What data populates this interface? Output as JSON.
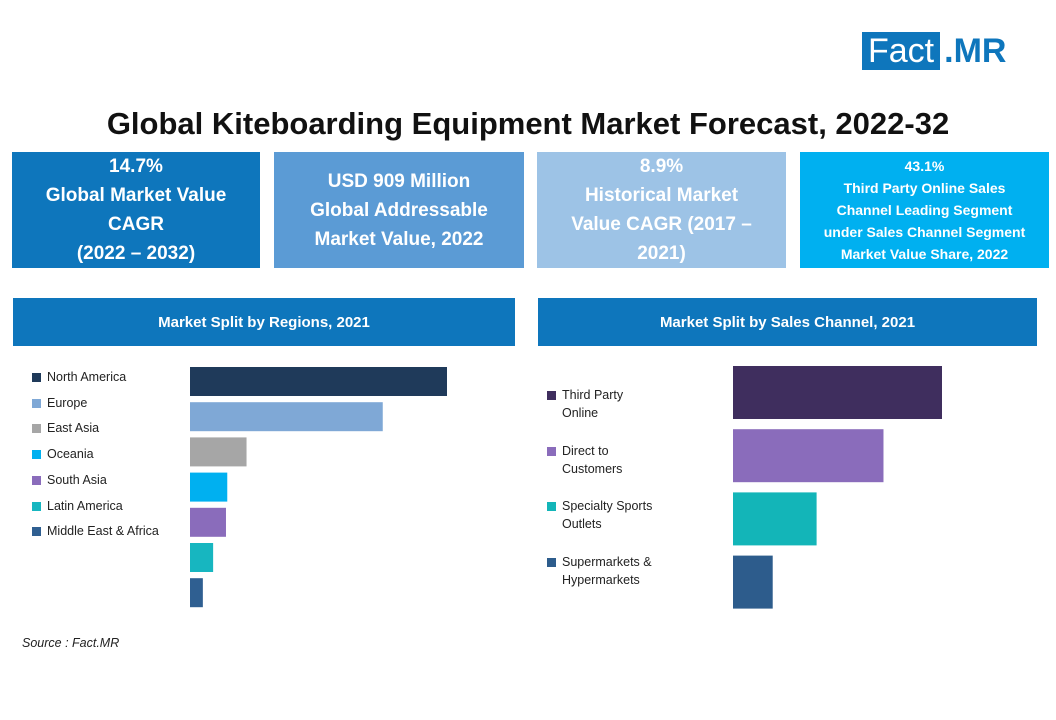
{
  "logo": {
    "part1": "Fact",
    "part2": ".MR"
  },
  "title": "Global Kiteboarding Equipment Market Forecast, 2022-32",
  "kpis": [
    {
      "text": "14.7%\nGlobal Market Value\nCAGR\n(2022 – 2032)",
      "bg": "#0e76bc"
    },
    {
      "text": "USD 909 Million\nGlobal Addressable\nMarket Value, 2022",
      "bg": "#5b9bd5"
    },
    {
      "text": "8.9%\nHistorical Market\nValue CAGR (2017 –\n2021)",
      "bg": "#9dc3e6"
    },
    {
      "text": "43.1%\nThird Party Online Sales\nChannel Leading Segment\nunder Sales Channel Segment\nMarket Value Share, 2022",
      "bg": "#00b0f0"
    }
  ],
  "chart_data": [
    {
      "type": "bar",
      "title": "Market Split by Regions, 2021",
      "orientation": "horizontal",
      "categories": [
        "North America",
        "Europe",
        "East Asia",
        "Oceania",
        "South Asia",
        "Latin America",
        "Middle East & Africa"
      ],
      "values": [
        100,
        75,
        22,
        14.5,
        14,
        9,
        5
      ],
      "colors": [
        "#1f3a5a",
        "#7fa8d6",
        "#a6a6a6",
        "#00b0f0",
        "#8a6cbb",
        "#17b6c0",
        "#2f5f91"
      ],
      "legend_position": "left",
      "axes_visible": false
    },
    {
      "type": "bar",
      "title": "Market Split by Sales Channel, 2021",
      "orientation": "horizontal",
      "categories": [
        "Third Party\nOnline",
        "Direct to\nCustomers",
        "Specialty Sports\nOutlets",
        "Supermarkets &\nHypermarkets"
      ],
      "values": [
        100,
        72,
        40,
        19
      ],
      "colors": [
        "#3f2e5e",
        "#8a6cbb",
        "#13b5b8",
        "#2d5c8c"
      ],
      "legend_position": "left",
      "axes_visible": false
    }
  ],
  "source": "Source : Fact.MR"
}
